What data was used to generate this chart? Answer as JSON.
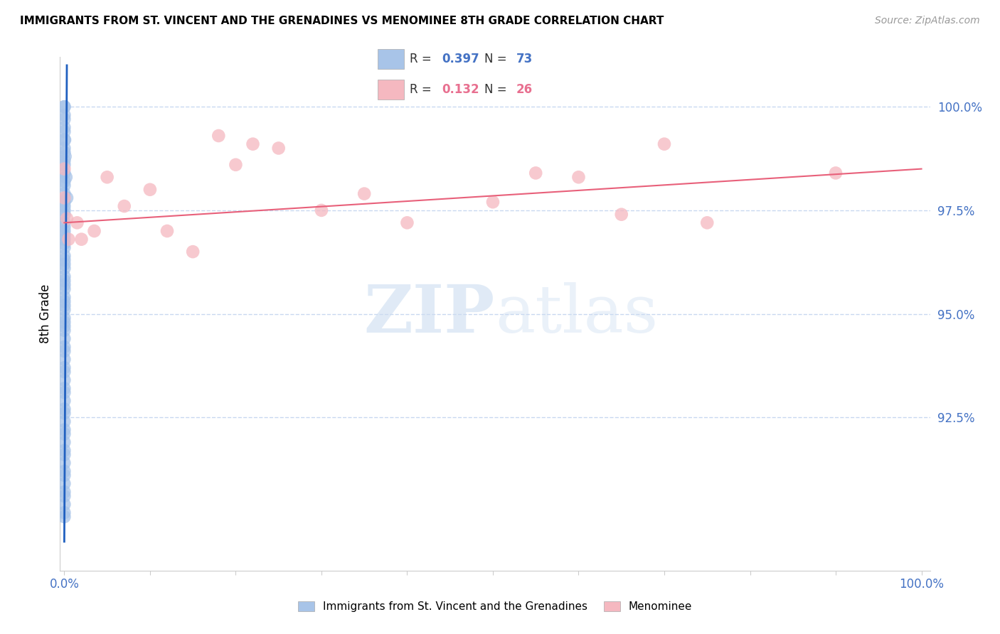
{
  "title": "IMMIGRANTS FROM ST. VINCENT AND THE GRENADINES VS MENOMINEE 8TH GRADE CORRELATION CHART",
  "source": "Source: ZipAtlas.com",
  "ylabel": "8th Grade",
  "ytick_values": [
    92.5,
    95.0,
    97.5,
    100.0
  ],
  "ymin": 88.8,
  "ymax": 101.2,
  "xmin": -0.5,
  "xmax": 101.0,
  "legend_blue_r": "0.397",
  "legend_blue_n": "73",
  "legend_pink_r": "0.132",
  "legend_pink_n": "26",
  "legend_label_blue": "Immigrants from St. Vincent and the Grenadines",
  "legend_label_pink": "Menominee",
  "blue_color": "#a8c4e8",
  "pink_color": "#f5b8c0",
  "trendline_blue_color": "#2060c0",
  "trendline_pink_color": "#e8607a",
  "blue_scatter_x": [
    0.0,
    0.0,
    0.0,
    0.0,
    0.0,
    0.0,
    0.0,
    0.0,
    0.0,
    0.0,
    0.0,
    0.0,
    0.0,
    0.0,
    0.0,
    0.0,
    0.0,
    0.0,
    0.0,
    0.0,
    0.0,
    0.0,
    0.0,
    0.0,
    0.0,
    0.0,
    0.0,
    0.0,
    0.0,
    0.0,
    0.0,
    0.0,
    0.0,
    0.0,
    0.0,
    0.0,
    0.0,
    0.0,
    0.0,
    0.0,
    0.0,
    0.0,
    0.0,
    0.0,
    0.0,
    0.0,
    0.0,
    0.0,
    0.0,
    0.0,
    0.0,
    0.0,
    0.0,
    0.0,
    0.0,
    0.0,
    0.0,
    0.0,
    0.0,
    0.0,
    0.0,
    0.0,
    0.0,
    0.0,
    0.0,
    0.0,
    0.0,
    0.0,
    0.0,
    0.05,
    0.1,
    0.2,
    0.3
  ],
  "blue_scatter_y": [
    100.0,
    100.0,
    99.8,
    99.7,
    99.5,
    99.4,
    99.2,
    99.0,
    98.9,
    98.7,
    98.6,
    98.4,
    98.2,
    98.1,
    97.9,
    97.7,
    97.6,
    97.4,
    97.2,
    97.1,
    96.9,
    96.7,
    96.6,
    96.4,
    96.2,
    96.1,
    95.9,
    95.7,
    95.6,
    95.4,
    95.2,
    95.1,
    94.9,
    94.7,
    94.6,
    94.4,
    94.2,
    94.1,
    93.9,
    93.7,
    93.6,
    93.4,
    93.2,
    93.1,
    92.9,
    92.7,
    92.6,
    92.4,
    92.2,
    92.1,
    91.9,
    91.7,
    91.6,
    91.4,
    91.2,
    91.1,
    90.9,
    90.7,
    90.6,
    90.4,
    90.2,
    90.1,
    97.5,
    97.0,
    96.8,
    96.3,
    95.8,
    95.3,
    94.8,
    99.2,
    98.8,
    98.3,
    97.8
  ],
  "pink_scatter_x": [
    0.0,
    0.0,
    0.3,
    0.5,
    1.5,
    2.0,
    3.5,
    5.0,
    7.0,
    10.0,
    12.0,
    15.0,
    18.0,
    20.0,
    22.0,
    25.0,
    30.0,
    35.0,
    40.0,
    50.0,
    55.0,
    60.0,
    65.0,
    70.0,
    75.0,
    90.0
  ],
  "pink_scatter_y": [
    98.5,
    97.8,
    97.3,
    96.8,
    97.2,
    96.8,
    97.0,
    98.3,
    97.6,
    98.0,
    97.0,
    96.5,
    99.3,
    98.6,
    99.1,
    99.0,
    97.5,
    97.9,
    97.2,
    97.7,
    98.4,
    98.3,
    97.4,
    99.1,
    97.2,
    98.4
  ],
  "blue_trend_x": [
    0.0,
    0.3
  ],
  "blue_trend_y": [
    89.5,
    101.0
  ],
  "pink_trend_x": [
    0.0,
    100.0
  ],
  "pink_trend_y": [
    97.2,
    98.5
  ],
  "watermark_zip": "ZIP",
  "watermark_atlas": "atlas",
  "background_color": "#ffffff",
  "grid_color": "#c8d8f0",
  "marker_size": 180
}
